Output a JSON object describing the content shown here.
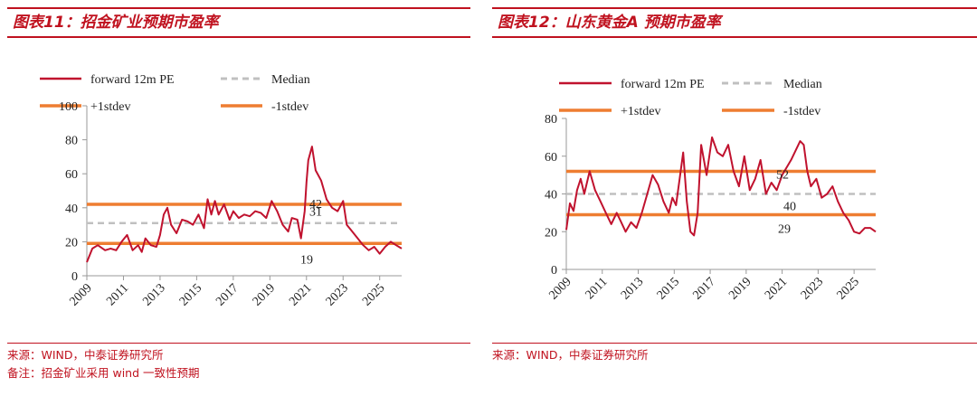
{
  "colors": {
    "accent": "#c0121f",
    "pe_line": "#c0122e",
    "stdev_line": "#ee7d31",
    "median_line": "#c0c0c0"
  },
  "charts": {
    "left": {
      "fig_title": "图表11：招金矿业预期市盈率",
      "source": "来源：WIND，中泰证券研究所",
      "note": "备注：招金矿业采用 wind 一致性预期"
    },
    "right": {
      "fig_title": "图表12：山东黄金A 预期市盈率",
      "source": "来源：WIND，中泰证券研究所"
    }
  },
  "chart_data": [
    {
      "type": "line",
      "title": "招金矿业预期市盈率",
      "x_range": [
        2009.0,
        2026.2
      ],
      "ylim": [
        0,
        100
      ],
      "y_ticks": [
        "0",
        "20",
        "40",
        "60",
        "80",
        "100"
      ],
      "x_ticks": [
        "2009",
        "2011",
        "2013",
        "2015",
        "2017",
        "2019",
        "2021",
        "2023",
        "2025"
      ],
      "legend_placement": "top",
      "legend": [
        "forward 12m PE",
        "Median",
        "+1stdev",
        "-1stdev"
      ],
      "reference_lines": {
        "median": 31,
        "plus_1stdev": 42,
        "minus_1stdev": 19
      },
      "annotations": [
        "42",
        "31",
        "19"
      ],
      "series": [
        {
          "name": "forward 12m PE",
          "x": [
            2009.0,
            2009.3,
            2009.6,
            2010.0,
            2010.3,
            2010.6,
            2010.9,
            2011.2,
            2011.5,
            2011.8,
            2012.0,
            2012.2,
            2012.5,
            2012.8,
            2013.0,
            2013.2,
            2013.4,
            2013.6,
            2013.9,
            2014.2,
            2014.5,
            2014.8,
            2015.1,
            2015.4,
            2015.6,
            2015.8,
            2016.0,
            2016.2,
            2016.5,
            2016.8,
            2017.0,
            2017.3,
            2017.6,
            2017.9,
            2018.2,
            2018.5,
            2018.8,
            2019.1,
            2019.4,
            2019.7,
            2020.0,
            2020.2,
            2020.5,
            2020.7,
            2020.9,
            2021.0,
            2021.1,
            2021.3,
            2021.5,
            2021.8,
            2022.1,
            2022.4,
            2022.7,
            2023.0,
            2023.2,
            2023.5,
            2023.8,
            2024.1,
            2024.4,
            2024.7,
            2025.0,
            2025.3,
            2025.6,
            2025.9,
            2026.2
          ],
          "y": [
            8,
            16,
            18,
            15,
            16,
            15,
            20,
            24,
            15,
            18,
            14,
            22,
            18,
            17,
            24,
            36,
            40,
            30,
            25,
            33,
            32,
            30,
            36,
            28,
            45,
            36,
            44,
            36,
            42,
            33,
            38,
            34,
            36,
            35,
            38,
            37,
            34,
            44,
            38,
            30,
            26,
            34,
            33,
            22,
            38,
            55,
            68,
            76,
            62,
            56,
            45,
            40,
            38,
            44,
            30,
            26,
            22,
            18,
            15,
            17,
            13,
            17,
            20,
            18,
            16
          ]
        }
      ]
    },
    {
      "type": "line",
      "title": "山东黄金A 预期市盈率",
      "x_range": [
        2009.0,
        2026.2
      ],
      "ylim": [
        0,
        80
      ],
      "y_ticks": [
        "0",
        "20",
        "40",
        "60",
        "80"
      ],
      "x_ticks": [
        "2009",
        "2011",
        "2013",
        "2015",
        "2017",
        "2019",
        "2021",
        "2023",
        "2025"
      ],
      "legend_placement": "top",
      "legend": [
        "forward 12m PE",
        "Median",
        "+1stdev",
        "-1stdev"
      ],
      "reference_lines": {
        "median": 40,
        "plus_1stdev": 52,
        "minus_1stdev": 29
      },
      "annotations": [
        "52",
        "40",
        "29"
      ],
      "series": [
        {
          "name": "forward 12m PE",
          "x": [
            2009.0,
            2009.2,
            2009.4,
            2009.6,
            2009.8,
            2010.0,
            2010.3,
            2010.6,
            2010.9,
            2011.2,
            2011.5,
            2011.8,
            2012.0,
            2012.3,
            2012.6,
            2012.9,
            2013.2,
            2013.5,
            2013.8,
            2014.1,
            2014.4,
            2014.7,
            2014.9,
            2015.1,
            2015.3,
            2015.5,
            2015.7,
            2015.9,
            2016.1,
            2016.3,
            2016.5,
            2016.8,
            2017.1,
            2017.4,
            2017.7,
            2018.0,
            2018.3,
            2018.6,
            2018.9,
            2019.2,
            2019.5,
            2019.8,
            2020.1,
            2020.4,
            2020.7,
            2021.0,
            2021.5,
            2022.0,
            2022.2,
            2022.4,
            2022.6,
            2022.9,
            2023.2,
            2023.5,
            2023.8,
            2024.1,
            2024.4,
            2024.7,
            2025.0,
            2025.3,
            2025.6,
            2025.9,
            2026.2
          ],
          "y": [
            21,
            35,
            31,
            42,
            48,
            40,
            52,
            42,
            36,
            30,
            24,
            30,
            26,
            20,
            25,
            22,
            30,
            40,
            50,
            45,
            36,
            30,
            38,
            34,
            48,
            62,
            36,
            20,
            18,
            30,
            66,
            50,
            70,
            62,
            60,
            66,
            52,
            44,
            60,
            42,
            48,
            58,
            40,
            46,
            42,
            50,
            58,
            68,
            66,
            52,
            44,
            48,
            38,
            40,
            44,
            36,
            30,
            26,
            20,
            19,
            22,
            22,
            20
          ]
        }
      ]
    }
  ]
}
